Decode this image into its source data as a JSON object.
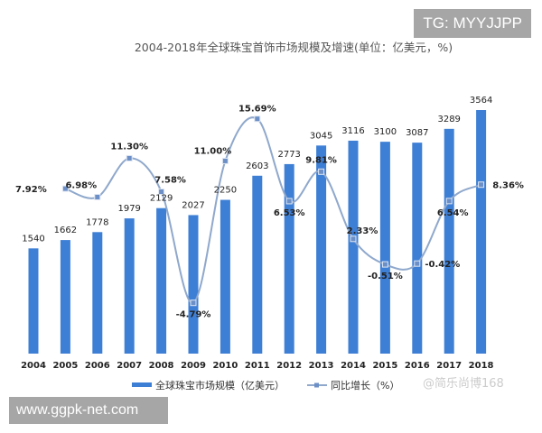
{
  "watermarks": {
    "top_right": "TG: MYYJJPP",
    "bottom_left": "www.ggpk-net.com",
    "source": "@简乐尚博168"
  },
  "chart_data": {
    "type": "bar+line",
    "title": "2004-2018年全球珠宝首饰市场规模及增速(单位：亿美元，%)",
    "categories": [
      "2004",
      "2005",
      "2006",
      "2007",
      "2008",
      "2009",
      "2010",
      "2011",
      "2012",
      "2013",
      "2014",
      "2015",
      "2016",
      "2017",
      "2018"
    ],
    "series": [
      {
        "name": "全球珠宝市场规模（亿美元）",
        "type": "bar",
        "color": "#3e7fd6",
        "values": [
          1540,
          1662,
          1778,
          1979,
          2129,
          2027,
          2250,
          2603,
          2773,
          3045,
          3116,
          3100,
          3087,
          3289,
          3564
        ]
      },
      {
        "name": "同比增长（%）",
        "type": "line",
        "color": "#8fa8cc",
        "values": [
          null,
          7.92,
          6.98,
          11.3,
          7.58,
          -4.79,
          11.0,
          15.69,
          6.53,
          9.81,
          2.33,
          -0.51,
          -0.42,
          6.54,
          8.36
        ],
        "labels": [
          null,
          "7.92%",
          "6.98%",
          "11.30%",
          "7.58%",
          "-4.79%",
          "11.00%",
          "15.69%",
          "6.53%",
          "9.81%",
          "2.33%",
          "-0.51%",
          "-0.42%",
          "6.54%",
          "8.36%"
        ]
      }
    ],
    "ylim_bar": [
      0,
      3564
    ],
    "grid": false,
    "legend": "bottom"
  }
}
